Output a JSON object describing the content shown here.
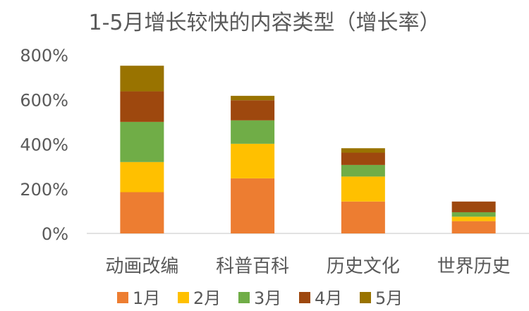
{
  "chart_data": {
    "type": "bar",
    "stacked": true,
    "title": "1-5月增长较快的内容类型（增长率）",
    "categories": [
      "动画改编",
      "科普百科",
      "历史文化",
      "世界历史"
    ],
    "series": [
      {
        "name": "1月",
        "color": "#ED7D31",
        "values": [
          185,
          247,
          143,
          55
        ]
      },
      {
        "name": "2月",
        "color": "#FFC000",
        "values": [
          135,
          155,
          112,
          20
        ]
      },
      {
        "name": "3月",
        "color": "#70AD47",
        "values": [
          180,
          105,
          52,
          20
        ]
      },
      {
        "name": "4月",
        "color": "#9E480E",
        "values": [
          137,
          90,
          55,
          48
        ]
      },
      {
        "name": "5月",
        "color": "#997300",
        "values": [
          115,
          20,
          20,
          0
        ]
      }
    ],
    "yticks": [
      "0%",
      "200%",
      "400%",
      "600%",
      "800%"
    ],
    "ylim": [
      0,
      800
    ],
    "grid": false,
    "legend": "bottom"
  }
}
